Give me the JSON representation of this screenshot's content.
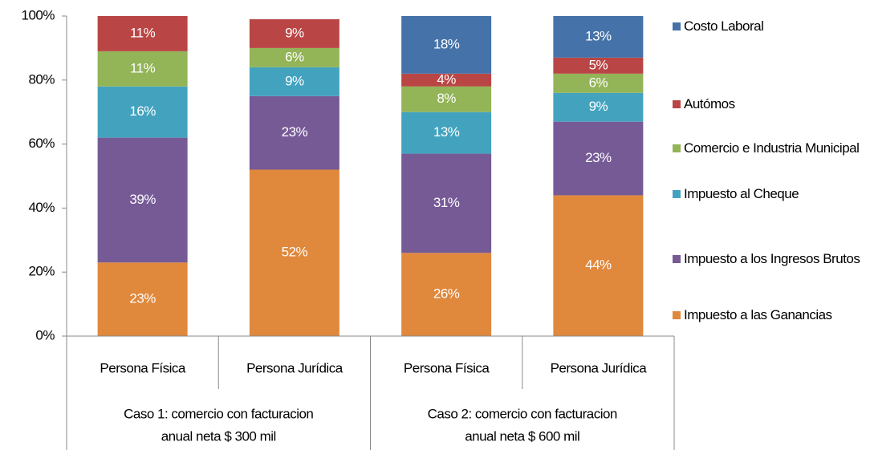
{
  "chart_data": {
    "type": "bar",
    "stacked": true,
    "categories": [
      "Persona Física",
      "Persona Jurídica",
      "Persona Física",
      "Persona Jurídica"
    ],
    "groups": [
      {
        "lines": [
          "Caso 1: comercio con facturacion",
          "anual neta $ 300 mil"
        ]
      },
      {
        "lines": [
          "Caso 2: comercio con facturacion",
          "anual neta $ 600 mil"
        ]
      }
    ],
    "series": [
      {
        "name": "Impuesto a las Ganancias",
        "color": "#e0883c",
        "values": [
          23,
          52,
          26,
          44
        ],
        "value_labels": [
          "23%",
          "52%",
          "26%",
          "44%"
        ]
      },
      {
        "name": "Impuesto a los Ingresos Brutos",
        "color": "#765a96",
        "values": [
          39,
          23,
          31,
          23
        ],
        "value_labels": [
          "39%",
          "23%",
          "31%",
          "23%"
        ]
      },
      {
        "name": "Impuesto al Cheque",
        "color": "#43a3bf",
        "values": [
          16,
          9,
          13,
          9
        ],
        "value_labels": [
          "16%",
          "9%",
          "13%",
          "9%"
        ]
      },
      {
        "name": "Comercio e Industria Municipal",
        "color": "#93b457",
        "values": [
          11,
          6,
          8,
          6
        ],
        "value_labels": [
          "11%",
          "6%",
          "8%",
          "6%"
        ]
      },
      {
        "name": "Autómos",
        "color": "#b94645",
        "values": [
          11,
          9,
          4,
          5
        ],
        "value_labels": [
          "11%",
          "9%",
          "4%",
          "5%"
        ]
      },
      {
        "name": "Costo Laboral",
        "color": "#4572a8",
        "values": [
          null,
          null,
          18,
          13
        ],
        "value_labels": [
          null,
          null,
          "18%",
          "13%"
        ]
      }
    ],
    "ylim": [
      0,
      100
    ],
    "yticks": [
      {
        "value": 0,
        "label": "0%"
      },
      {
        "value": 20,
        "label": "20%"
      },
      {
        "value": 40,
        "label": "40%"
      },
      {
        "value": 60,
        "label": "60%"
      },
      {
        "value": 80,
        "label": "80%"
      },
      {
        "value": 100,
        "label": "100%"
      }
    ],
    "legend": "right"
  }
}
